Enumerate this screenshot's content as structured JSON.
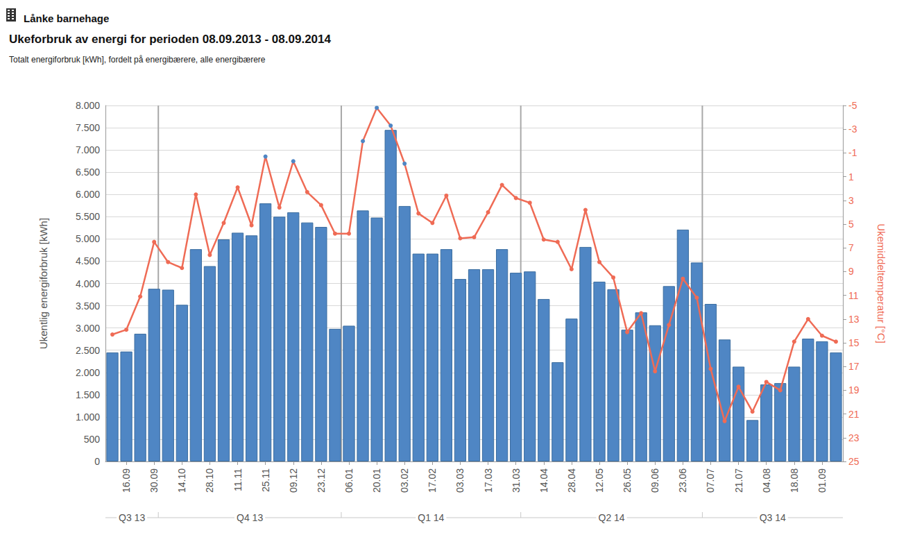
{
  "chart_data": {
    "type": "bar",
    "header": "Lånke barnehage",
    "title": "Ukeforbruk av energi for perioden 08.09.2013 - 08.09.2014",
    "subtitle": "Totalt energiforbruk [kWh], fordelt på energibærere, alle energibærere",
    "ylabel": "Ukentlig energiforbruk [kWh]",
    "y2label": "Ukemiddeltemperatur [°C]",
    "categories": [
      null,
      "16.09",
      null,
      "30.09",
      null,
      "14.10",
      null,
      "28.10",
      null,
      "11.11",
      null,
      "25.11",
      null,
      "09.12",
      null,
      "23.12",
      null,
      "06.01",
      null,
      "20.01",
      null,
      "03.02",
      null,
      "17.02",
      null,
      "03.03",
      null,
      "17.03",
      null,
      "31.03",
      null,
      "14.04",
      null,
      "28.04",
      null,
      "12.05",
      null,
      "26.05",
      null,
      "09.06",
      null,
      "23.06",
      null,
      "07.07",
      null,
      "21.07",
      null,
      "04.08",
      null,
      "18.08",
      null,
      "01.09",
      null
    ],
    "quarters": [
      {
        "label": "Q3 13",
        "start": 0,
        "end": 3.8
      },
      {
        "label": "Q4 13",
        "start": 3.8,
        "end": 16.95
      },
      {
        "label": "Q1 14",
        "start": 16.95,
        "end": 29.85
      },
      {
        "label": "Q2 14",
        "start": 29.85,
        "end": 42.9
      },
      {
        "label": "Q3 14",
        "start": 42.9,
        "end": 53
      }
    ],
    "series": [
      {
        "type": "bar",
        "color": "#4f86c4",
        "values": [
          2450,
          2470,
          2870,
          3880,
          3860,
          3520,
          4770,
          4390,
          4990,
          5140,
          5080,
          5800,
          5500,
          5600,
          5370,
          5270,
          2980,
          3050,
          5640,
          5480,
          7450,
          5740,
          4670,
          4670,
          4770,
          4100,
          4320,
          4320,
          4770,
          4240,
          4270,
          3650,
          2230,
          3210,
          4820,
          4040,
          3870,
          2960,
          3350,
          3060,
          3940,
          5210,
          4470,
          3540,
          2740,
          2130,
          930,
          1730,
          1760,
          2130,
          2760,
          2700,
          2450
        ]
      },
      {
        "type": "line",
        "axis": "y2",
        "color": "#ef6b55",
        "marker": "circle",
        "colors": [
          "#ef6b55",
          "#ef6b55",
          "#ef6b55",
          "#ef6b55",
          "#ef6b55",
          "#ef6b55",
          "#ef6b55",
          "#ef6b55",
          "#ef6b55",
          "#ef6b55",
          "#ef6b55",
          "#4f86c4",
          "#ef6b55",
          "#4f86c4",
          "#ef6b55",
          "#ef6b55",
          "#ef6b55",
          "#ef6b55",
          "#4f86c4",
          "#4f86c4",
          "#4f86c4",
          "#4f86c4",
          "#ef6b55",
          "#ef6b55",
          "#ef6b55",
          "#ef6b55",
          "#ef6b55",
          "#ef6b55",
          "#ef6b55",
          "#ef6b55",
          "#ef6b55",
          "#ef6b55",
          "#ef6b55",
          "#ef6b55",
          "#ef6b55",
          "#ef6b55",
          "#ef6b55",
          "#ef6b55",
          "#ef6b55",
          "#ef6b55",
          "#ef6b55",
          "#ef6b55",
          "#ef6b55",
          "#ef6b55",
          "#ef6b55",
          "#ef6b55",
          "#ef6b55",
          "#ef6b55",
          "#ef6b55",
          "#ef6b55",
          "#ef6b55",
          "#ef6b55",
          "#ef6b55"
        ],
        "values": [
          14.3,
          13.9,
          11.1,
          6.5,
          8.2,
          8.7,
          2.5,
          7.6,
          4.9,
          1.9,
          5.1,
          -0.7,
          3.6,
          -0.3,
          2.3,
          3.4,
          5.8,
          5.8,
          -2.0,
          -4.8,
          -3.3,
          -0.1,
          4.1,
          4.9,
          2.6,
          6.2,
          6.1,
          4.0,
          1.7,
          2.8,
          3.2,
          6.3,
          6.5,
          8.8,
          3.8,
          8.2,
          9.5,
          14.1,
          12.5,
          17.4,
          13.5,
          9.6,
          11.2,
          17.2,
          21.6,
          18.7,
          20.8,
          18.3,
          19.0,
          14.9,
          13.0,
          14.4,
          14.9
        ]
      }
    ],
    "ylim": [
      0,
      8000
    ],
    "yticks": [
      0,
      500,
      {
        "value": 1000,
        "label": "1.000"
      },
      {
        "value": 1500,
        "label": "1.500"
      },
      {
        "value": 2000,
        "label": "2.000"
      },
      {
        "value": 2500,
        "label": "2.500"
      },
      {
        "value": 3000,
        "label": "3.000"
      },
      {
        "value": 3500,
        "label": "3.500"
      },
      {
        "value": 4000,
        "label": "4.000"
      },
      {
        "value": 4500,
        "label": "4.500"
      },
      {
        "value": 5000,
        "label": "5.000"
      },
      {
        "value": 5500,
        "label": "5.500"
      },
      {
        "value": 6000,
        "label": "6.000"
      },
      {
        "value": 6500,
        "label": "6.500"
      },
      {
        "value": 7000,
        "label": "7.000"
      },
      {
        "value": 7500,
        "label": "7.500"
      },
      {
        "value": 8000,
        "label": "8.000"
      }
    ],
    "y2lim": [
      25,
      -5
    ],
    "y2ticks": [
      -5,
      -3,
      -1,
      1,
      3,
      5,
      7,
      9,
      11,
      13,
      15,
      17,
      19,
      21,
      23,
      25
    ],
    "grid": true
  }
}
